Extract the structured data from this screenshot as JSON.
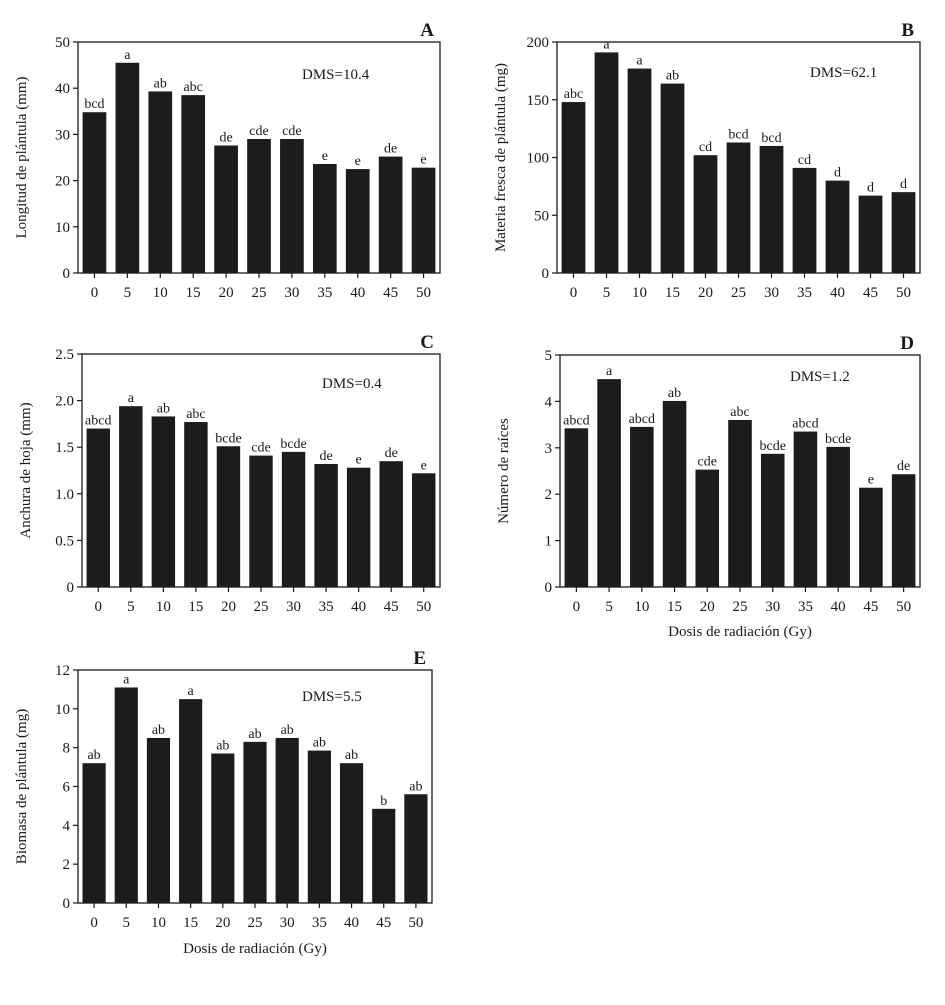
{
  "colors": {
    "bar": "#1c1c1c",
    "axis": "#1a1a1a",
    "background": "#ffffff"
  },
  "chart_data": [
    {
      "panel": "A",
      "type": "bar",
      "dms": "DMS=10.4",
      "xlabel": "",
      "ylabel": "Longitud de plántula (mm)",
      "ylim": [
        0,
        50
      ],
      "yticks": [
        0,
        10,
        20,
        30,
        40,
        50
      ],
      "categories": [
        "0",
        "5",
        "10",
        "15",
        "20",
        "25",
        "30",
        "35",
        "40",
        "45",
        "50"
      ],
      "values": [
        34.8,
        45.5,
        39.3,
        38.5,
        27.6,
        29.0,
        29.0,
        23.6,
        22.5,
        25.2,
        22.8
      ],
      "letters": [
        "bcd",
        "a",
        "ab",
        "abc",
        "de",
        "cde",
        "cde",
        "e",
        "e",
        "de",
        "e"
      ]
    },
    {
      "panel": "B",
      "type": "bar",
      "dms": "DMS=62.1",
      "xlabel": "",
      "ylabel": "Materia fresca de plántula (mg)",
      "ylim": [
        0,
        200
      ],
      "yticks": [
        0,
        50,
        100,
        150,
        200
      ],
      "categories": [
        "0",
        "5",
        "10",
        "15",
        "20",
        "25",
        "30",
        "35",
        "40",
        "45",
        "50"
      ],
      "values": [
        148,
        191,
        177,
        164,
        102,
        113,
        110,
        91,
        80,
        67,
        70
      ],
      "letters": [
        "abc",
        "a",
        "a",
        "ab",
        "cd",
        "bcd",
        "bcd",
        "cd",
        "d",
        "d",
        "d"
      ]
    },
    {
      "panel": "C",
      "type": "bar",
      "dms": "DMS=0.4",
      "xlabel": "",
      "ylabel": "Anchura de hoja (mm)",
      "ylim": [
        0,
        2.5
      ],
      "yticks": [
        0,
        0.5,
        1.0,
        1.5,
        2.0,
        2.5
      ],
      "ytick_labels": [
        "0",
        "0.5",
        "1.0",
        "1.5",
        "2.0",
        "2.5"
      ],
      "categories": [
        "0",
        "5",
        "10",
        "15",
        "20",
        "25",
        "30",
        "35",
        "40",
        "45",
        "50"
      ],
      "values": [
        1.7,
        1.94,
        1.83,
        1.77,
        1.51,
        1.41,
        1.45,
        1.32,
        1.28,
        1.35,
        1.22
      ],
      "letters": [
        "abcd",
        "a",
        "ab",
        "abc",
        "bcde",
        "cde",
        "bcde",
        "de",
        "e",
        "de",
        "e"
      ]
    },
    {
      "panel": "D",
      "type": "bar",
      "dms": "DMS=1.2",
      "xlabel": "Dosis de radiación (Gy)",
      "ylabel": "Número de raíces",
      "ylim": [
        0,
        5
      ],
      "yticks": [
        0,
        1,
        2,
        3,
        4,
        5
      ],
      "categories": [
        "0",
        "5",
        "10",
        "15",
        "20",
        "25",
        "30",
        "35",
        "40",
        "45",
        "50"
      ],
      "values": [
        3.42,
        4.48,
        3.45,
        4.01,
        2.53,
        3.6,
        2.87,
        3.35,
        3.02,
        2.14,
        2.43
      ],
      "letters": [
        "abcd",
        "a",
        "abcd",
        "ab",
        "cde",
        "abc",
        "bcde",
        "abcd",
        "bcde",
        "e",
        "de"
      ]
    },
    {
      "panel": "E",
      "type": "bar",
      "dms": "DMS=5.5",
      "xlabel": "Dosis de radiación (Gy)",
      "ylabel": "Biomasa de plántula (mg)",
      "ylim": [
        0,
        12
      ],
      "yticks": [
        0,
        2,
        4,
        6,
        8,
        10,
        12
      ],
      "categories": [
        "0",
        "5",
        "10",
        "15",
        "20",
        "25",
        "30",
        "35",
        "40",
        "45",
        "50"
      ],
      "values": [
        7.2,
        11.1,
        8.5,
        10.5,
        7.7,
        8.3,
        8.5,
        7.85,
        7.2,
        4.85,
        5.6
      ],
      "letters": [
        "ab",
        "a",
        "ab",
        "a",
        "ab",
        "ab",
        "ab",
        "ab",
        "ab",
        "b",
        "ab"
      ]
    }
  ]
}
